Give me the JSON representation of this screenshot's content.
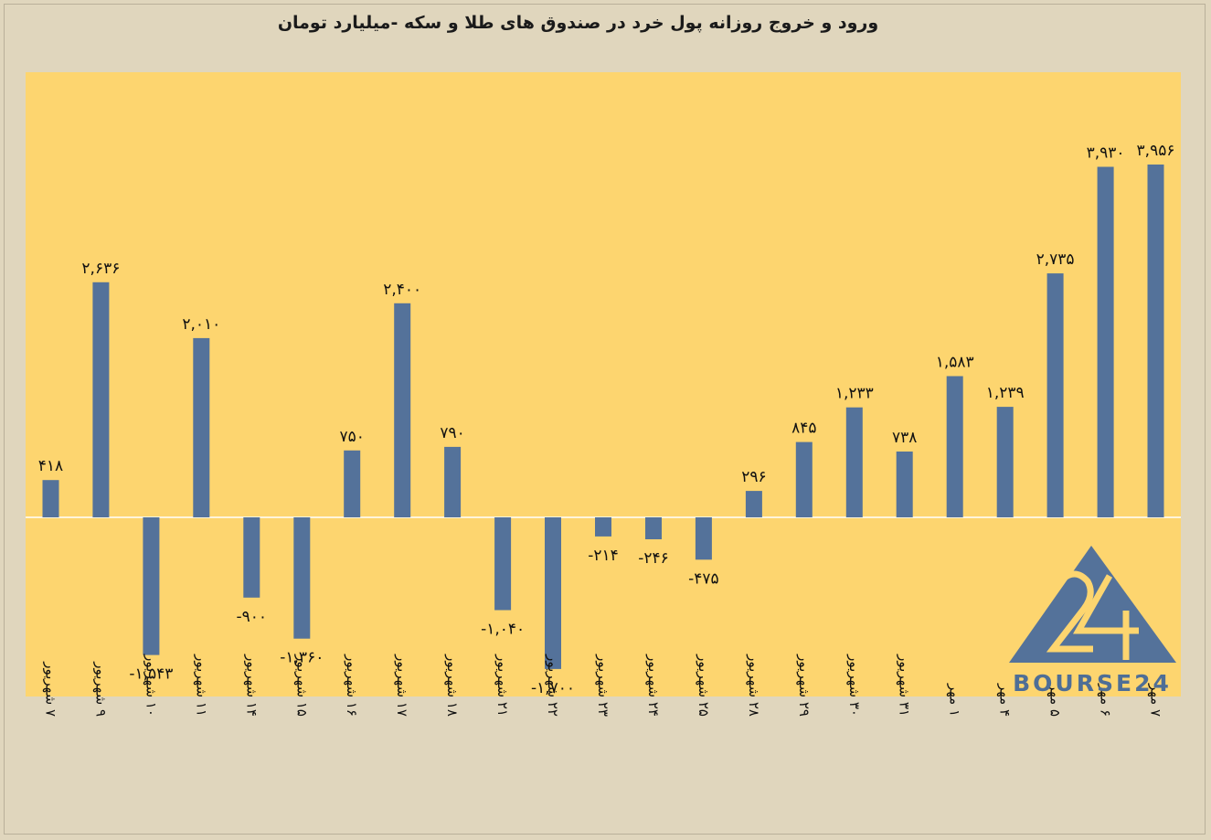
{
  "chart_data": {
    "type": "bar",
    "title": "ورود و خروج روزانه پول خرد در صندوق های طلا و سکه -میلیارد تومان",
    "categories": [
      "۷ شهریور",
      "۹ شهریور",
      "۱۰ شهریور",
      "۱۱ شهریور",
      "۱۴ شهریور",
      "۱۵ شهریور",
      "۱۶ شهریور",
      "۱۷ شهریور",
      "۱۸ شهریور",
      "۲۱ شهریور",
      "۲۲ شهریور",
      "۲۳ شهریور",
      "۲۴ شهریور",
      "۲۵ شهریور",
      "۲۸ شهریور",
      "۲۹ شهریور",
      "۳۰ شهریور",
      "۳۱ شهریور",
      "۱ مهر",
      "۴ مهر",
      "۵ مهر",
      "۶ مهر",
      "۷ مهر"
    ],
    "values": [
      418,
      2636,
      -1543,
      2010,
      -900,
      -1360,
      750,
      2400,
      790,
      -1040,
      -1700,
      -214,
      -246,
      -475,
      296,
      845,
      1233,
      738,
      1583,
      1239,
      2735,
      3930,
      3956
    ],
    "value_labels": [
      "۴۱۸",
      "۲,۶۳۶",
      "-۱,۵۴۳",
      "۲,۰۱۰",
      "-۹۰۰",
      "-۱,۳۶۰",
      "۷۵۰",
      "۲,۴۰۰",
      "۷۹۰",
      "-۱,۰۴۰",
      "-۱,۷۰۰",
      "-۲۱۴",
      "-۲۴۶",
      "-۴۷۵",
      "۲۹۶",
      "۸۴۵",
      "۱,۲۳۳",
      "۷۳۸",
      "۱,۵۸۳",
      "۱,۲۳۹",
      "۲,۷۳۵",
      "۳,۹۳۰",
      "۳,۹۵۶"
    ],
    "grid": false,
    "legend": "none"
  },
  "colors": {
    "background": "#e0d6bd",
    "plot_area": "#fdd56f",
    "bar": "#54729a",
    "logo": "#4e6e96"
  },
  "logo": {
    "text": "BOURSE24",
    "icon": "bourse24-triangle-logo"
  }
}
